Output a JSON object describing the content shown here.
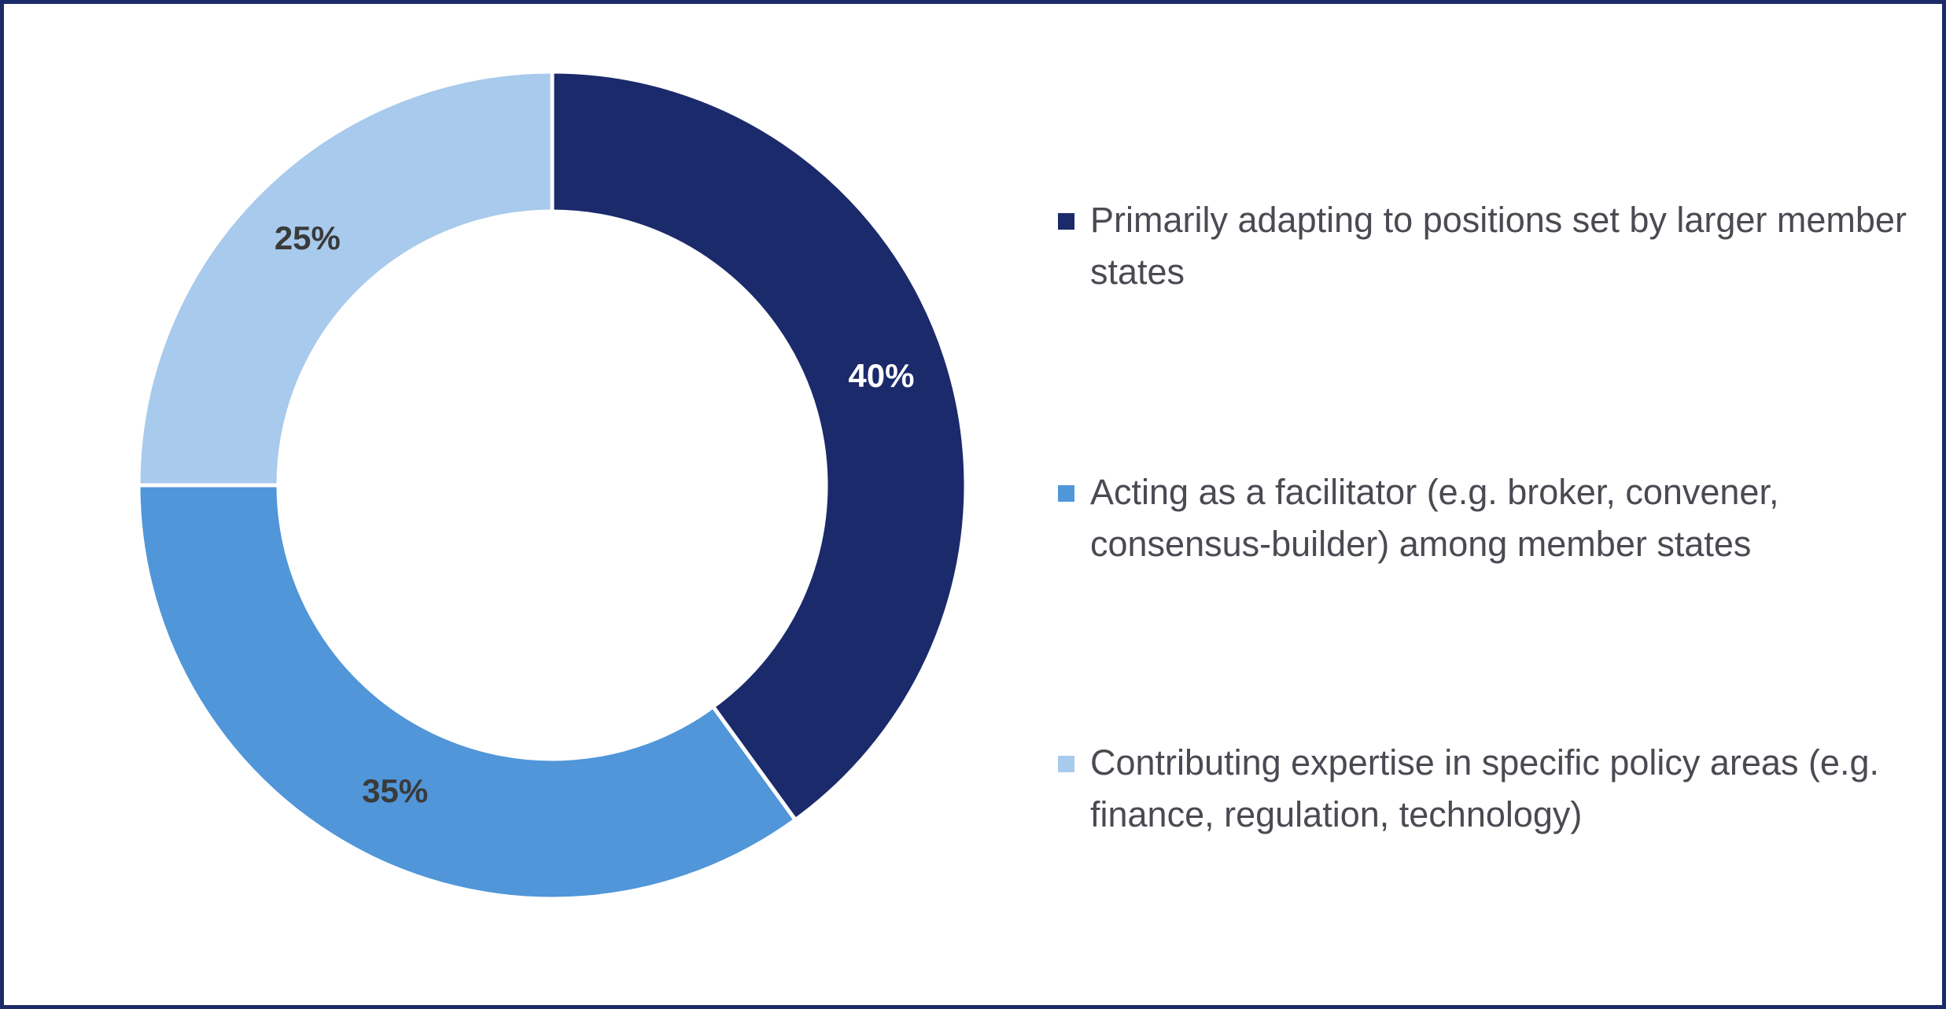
{
  "chart_data": {
    "type": "pie",
    "variant": "donut",
    "slices": [
      {
        "label": "Primarily adapting to positions set by larger member states",
        "value": 40,
        "value_label": "40%",
        "color": "#1b2a6b",
        "label_color": "#ffffff"
      },
      {
        "label": "Acting as a facilitator (e.g. broker, convener, consensus-builder) among member states",
        "value": 35,
        "value_label": "35%",
        "color": "#5096d9",
        "label_color": "#3a3a3a"
      },
      {
        "label": "Contributing expertise in specific policy areas (e.g. finance, regulation, technology)",
        "value": 25,
        "value_label": "25%",
        "color": "#a8caec",
        "label_color": "#3a3a3a"
      }
    ],
    "start_angle": "12 o'clock",
    "direction": "clockwise",
    "legend_position": "right"
  }
}
